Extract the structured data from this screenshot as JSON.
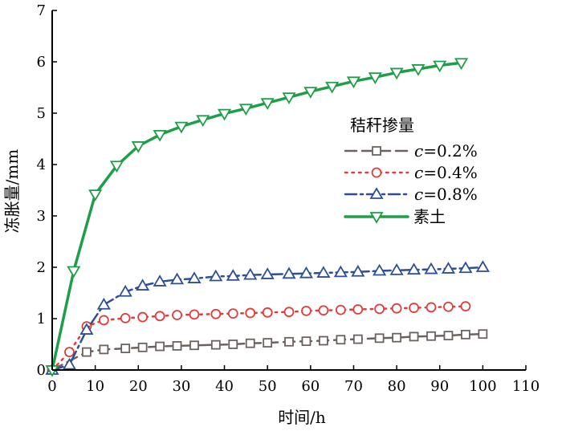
{
  "chart_data": {
    "type": "line",
    "xlabel": "时间/h",
    "ylabel": "冻胀量/mm",
    "xlim": [
      0,
      110
    ],
    "ylim": [
      0,
      7
    ],
    "xticks": [
      "0",
      "10",
      "20",
      "30",
      "40",
      "50",
      "60",
      "70",
      "80",
      "90",
      "100",
      "110"
    ],
    "yticks": [
      "0",
      "1",
      "2",
      "3",
      "4",
      "5",
      "6",
      "7"
    ],
    "grid": false,
    "legend": {
      "title": "秸秆掺量",
      "placement": "center-right",
      "entries": [
        {
          "prefix": "c",
          "suffix": "=0.2%"
        },
        {
          "prefix": "c",
          "suffix": "=0.4%"
        },
        {
          "prefix": "c",
          "suffix": "=0.8%"
        },
        {
          "prefix": "",
          "suffix": "素土"
        }
      ]
    },
    "series": [
      {
        "key": "c0.2",
        "color": "#6b6260",
        "marker": "square",
        "dash": "dashed",
        "x": [
          0,
          8,
          12,
          17,
          21,
          25,
          29,
          33,
          38,
          42,
          46,
          50,
          55,
          59,
          63,
          67,
          71,
          76,
          80,
          84,
          88,
          92,
          96,
          100
        ],
        "y": [
          0,
          0.35,
          0.4,
          0.42,
          0.44,
          0.46,
          0.47,
          0.48,
          0.49,
          0.5,
          0.52,
          0.53,
          0.55,
          0.56,
          0.57,
          0.59,
          0.6,
          0.62,
          0.63,
          0.65,
          0.66,
          0.67,
          0.69,
          0.7
        ]
      },
      {
        "key": "c0.4",
        "color": "#e23b3b",
        "marker": "circle",
        "dash": "dotted",
        "x": [
          0,
          4,
          8,
          12,
          17,
          21,
          25,
          29,
          33,
          38,
          42,
          46,
          50,
          55,
          59,
          63,
          67,
          71,
          76,
          80,
          84,
          88,
          92,
          96
        ],
        "y": [
          0,
          0.35,
          0.85,
          0.97,
          1.01,
          1.03,
          1.05,
          1.07,
          1.08,
          1.09,
          1.1,
          1.11,
          1.12,
          1.13,
          1.15,
          1.16,
          1.17,
          1.18,
          1.19,
          1.2,
          1.21,
          1.22,
          1.23,
          1.24
        ]
      },
      {
        "key": "c0.8",
        "color": "#2d4f96",
        "marker": "triangle-up",
        "dash": "dashdot",
        "x": [
          0,
          4,
          8,
          12,
          17,
          21,
          25,
          29,
          33,
          38,
          42,
          46,
          50,
          55,
          59,
          63,
          67,
          71,
          76,
          80,
          84,
          88,
          92,
          96,
          100
        ],
        "y": [
          0,
          0.1,
          0.78,
          1.27,
          1.52,
          1.64,
          1.72,
          1.76,
          1.78,
          1.82,
          1.83,
          1.85,
          1.86,
          1.87,
          1.88,
          1.89,
          1.9,
          1.91,
          1.93,
          1.94,
          1.95,
          1.96,
          1.97,
          1.98,
          2.0
        ]
      },
      {
        "key": "plain",
        "color": "#1e9e48",
        "marker": "triangle-down",
        "dash": "solid",
        "x": [
          0,
          5,
          10,
          15,
          20,
          25,
          30,
          35,
          40,
          45,
          50,
          55,
          60,
          65,
          70,
          75,
          80,
          85,
          90,
          95
        ],
        "y": [
          0,
          1.93,
          3.42,
          3.98,
          4.36,
          4.58,
          4.74,
          4.87,
          4.99,
          5.09,
          5.2,
          5.31,
          5.42,
          5.52,
          5.62,
          5.7,
          5.79,
          5.86,
          5.93,
          5.98
        ]
      }
    ]
  }
}
